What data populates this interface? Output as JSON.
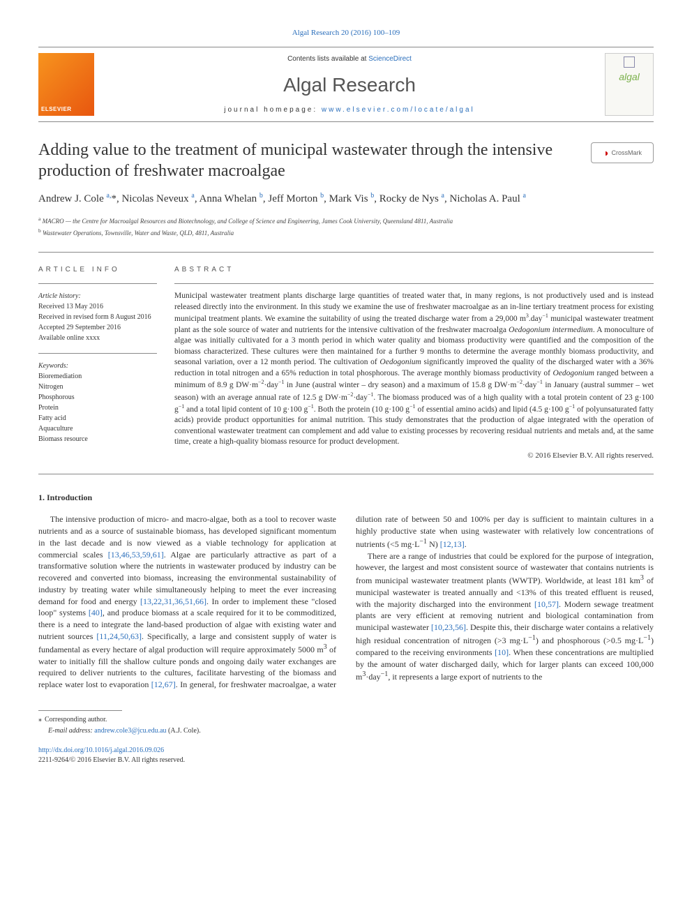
{
  "header": {
    "citation_line": "Algal Research 20 (2016) 100–109",
    "contents_prefix": "Contents lists available at ",
    "contents_link": "ScienceDirect",
    "journal_name": "Algal Research",
    "homepage_prefix": "journal homepage: ",
    "homepage_link": "www.elsevier.com/locate/algal",
    "publisher_logo_text": "ELSEVIER",
    "cover_text": "algal"
  },
  "article": {
    "title": "Adding value to the treatment of municipal wastewater through the intensive production of freshwater macroalgae",
    "crossmark_label": "CrossMark",
    "authors_html": "Andrew J. Cole <sup>a,</sup>*, Nicolas Neveux <sup>a</sup>, Anna Whelan <sup>b</sup>, Jeff Morton <sup>b</sup>, Mark Vis <sup>b</sup>, Rocky de Nys <sup>a</sup>, Nicholas A. Paul <sup>a</sup>",
    "affiliations": [
      {
        "marker": "a",
        "text": "MACRO — the Centre for Macroalgal Resources and Biotechnology, and College of Science and Engineering, James Cook University, Queensland 4811, Australia"
      },
      {
        "marker": "b",
        "text": "Wastewater Operations, Townsville, Water and Waste, QLD, 4811, Australia"
      }
    ]
  },
  "article_info": {
    "label": "ARTICLE INFO",
    "history_label": "Article history:",
    "history": [
      "Received 13 May 2016",
      "Received in revised form 8 August 2016",
      "Accepted 29 September 2016",
      "Available online xxxx"
    ],
    "keywords_label": "Keywords:",
    "keywords": [
      "Bioremediation",
      "Nitrogen",
      "Phosphorous",
      "Protein",
      "Fatty acid",
      "Aquaculture",
      "Biomass resource"
    ]
  },
  "abstract": {
    "label": "ABSTRACT",
    "body_html": "Municipal wastewater treatment plants discharge large quantities of treated water that, in many regions, is not productively used and is instead released directly into the environment. In this study we examine the use of freshwater macroalgae as an in-line tertiary treatment process for existing municipal treatment plants. We examine the suitability of using the treated discharge water from a 29,000 m<sup>3</sup>.day<sup>−1</sup> municipal wastewater treatment plant as the sole source of water and nutrients for the intensive cultivation of the freshwater macroalga <i>Oedogonium intermedium</i>. A monoculture of algae was initially cultivated for a 3 month period in which water quality and biomass productivity were quantified and the composition of the biomass characterized. These cultures were then maintained for a further 9 months to determine the average monthly biomass productivity, and seasonal variation, over a 12 month period. The cultivation of <i>Oedogonium</i> significantly improved the quality of the discharged water with a 36% reduction in total nitrogen and a 65% reduction in total phosphorous. The average monthly biomass productivity of <i>Oedogonium</i> ranged between a minimum of 8.9 g DW·m<sup>−2</sup>·day<sup>−1</sup> in June (austral winter – dry season) and a maximum of 15.8 g DW·m<sup>−2</sup>·day<sup>−1</sup> in January (austral summer – wet season) with an average annual rate of 12.5 g DW·m<sup>−2</sup>·day<sup>−1</sup>. The biomass produced was of a high quality with a total protein content of 23 g·100 g<sup>−1</sup> and a total lipid content of 10 g·100 g<sup>−1</sup>. Both the protein (10 g·100 g<sup>−1</sup> of essential amino acids) and lipid (4.5 g·100 g<sup>−1</sup> of polyunsaturated fatty acids) provide product opportunities for animal nutrition. This study demonstrates that the production of algae integrated with the operation of conventional wastewater treatment can complement and add value to existing processes by recovering residual nutrients and metals and, at the same time, create a high-quality biomass resource for product development.",
    "copyright": "© 2016 Elsevier B.V. All rights reserved."
  },
  "body": {
    "section_heading": "1. Introduction",
    "p1_html": "The intensive production of micro- and macro-algae, both as a tool to recover waste nutrients and as a source of sustainable biomass, has developed significant momentum in the last decade and is now viewed as a viable technology for application at commercial scales <a class='ref-link'>[13,46,53,59,61]</a>. Algae are particularly attractive as part of a transformative solution where the nutrients in wastewater produced by industry can be recovered and converted into biomass, increasing the environmental sustainability of industry by treating water while simultaneously helping to meet the ever increasing demand for food and energy <a class='ref-link'>[13,22,31,36,51,66]</a>. In order to implement these \"closed loop\" systems <a class='ref-link'>[40]</a>, and produce biomass at a scale required for it to be commoditized, there is a need to integrate the land-based production of algae with existing water and nutrient sources <a class='ref-link'>[11,24,50,63]</a>. Specifically, a large and consistent supply of water is fundamental as every hectare of algal production will require approximately 5000 m<sup>3</sup> of water to initially fill the shallow culture ponds and ongoing daily water exchanges are required to deliver nutrients to the cultures, facilitate harvesting of the biomass and replace water lost to evaporation <a class='ref-link'>[12,67]</a>. In general, for freshwater macroalgae, a water dilution rate of between 50 and 100% per day is sufficient to maintain cultures in a highly productive state when using wastewater with relatively low concentrations of nutrients (&lt;5 mg·L<sup>−1</sup> N) <a class='ref-link'>[12,13]</a>.",
    "p2_html": "There are a range of industries that could be explored for the purpose of integration, however, the largest and most consistent source of wastewater that contains nutrients is from municipal wastewater treatment plants (WWTP). Worldwide, at least 181 km<sup>3</sup> of municipal wastewater is treated annually and &lt;13% of this treated effluent is reused, with the majority discharged into the environment <a class='ref-link'>[10,57]</a>. Modern sewage treatment plants are very efficient at removing nutrient and biological contamination from municipal wastewater <a class='ref-link'>[10,23,56]</a>. Despite this, their discharge water contains a relatively high residual concentration of nitrogen (&gt;3 mg·L<sup>−1</sup>) and phosphorous (&gt;0.5 mg·L<sup>−1</sup>) compared to the receiving environments <a class='ref-link'>[10]</a>. When these concentrations are multiplied by the amount of water discharged daily, which for larger plants can exceed 100,000 m<sup>3</sup>·day<sup>−1</sup>, it represents a large export of nutrients to the"
  },
  "footer": {
    "corresponding": "Corresponding author.",
    "email_prefix": "E-mail address: ",
    "email": "andrew.cole3@jcu.edu.au",
    "email_suffix": " (A.J. Cole).",
    "doi": "http://dx.doi.org/10.1016/j.algal.2016.09.026",
    "issn_line": "2211-9264/© 2016 Elsevier B.V. All rights reserved."
  },
  "colors": {
    "link": "#2a6ebb",
    "publisher_gradient_start": "#f7941e",
    "publisher_gradient_end": "#e8560f",
    "cover_text": "#7ab04a"
  }
}
